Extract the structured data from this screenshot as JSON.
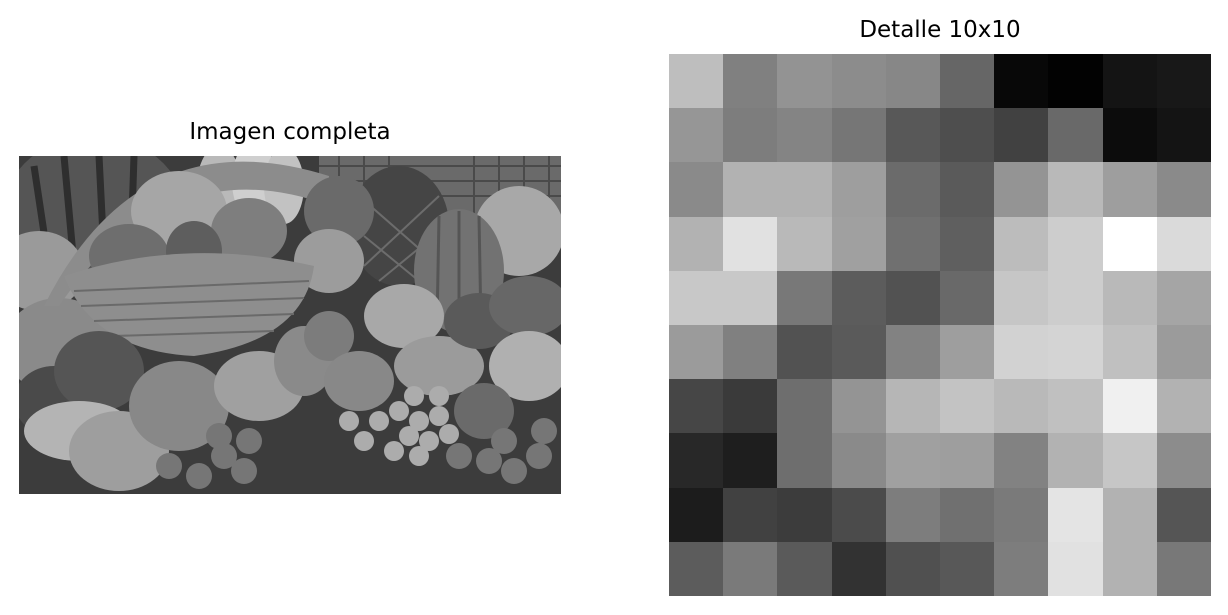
{
  "panels": {
    "left_title": "Imagen completa",
    "right_title": "Detalle 10x10"
  },
  "photo": {
    "subject": "grayscale still life of fruit: fruit basket with apples and grapes, watermelon, pineapple, melons, peppers, oranges, papayas, grapes and cherry tomatoes"
  },
  "detail_grid": {
    "size": 10,
    "colormap": "gray",
    "pixels": [
      [
        190,
        128,
        147,
        140,
        135,
        102,
        8,
        2,
        20,
        24
      ],
      [
        150,
        125,
        132,
        118,
        88,
        78,
        65,
        105,
        12,
        20
      ],
      [
        138,
        178,
        178,
        158,
        107,
        90,
        148,
        185,
        158,
        138
      ],
      [
        178,
        225,
        185,
        160,
        112,
        95,
        188,
        205,
        255,
        218
      ],
      [
        200,
        200,
        120,
        92,
        82,
        105,
        198,
        205,
        185,
        165
      ],
      [
        155,
        128,
        82,
        90,
        130,
        158,
        210,
        212,
        192,
        155
      ],
      [
        70,
        58,
        110,
        148,
        182,
        195,
        185,
        192,
        240,
        178
      ],
      [
        40,
        30,
        110,
        138,
        160,
        158,
        130,
        178,
        198,
        140
      ],
      [
        28,
        65,
        60,
        75,
        125,
        112,
        122,
        228,
        178,
        85
      ],
      [
        92,
        122,
        90,
        50,
        80,
        88,
        125,
        225,
        178,
        120
      ]
    ]
  }
}
